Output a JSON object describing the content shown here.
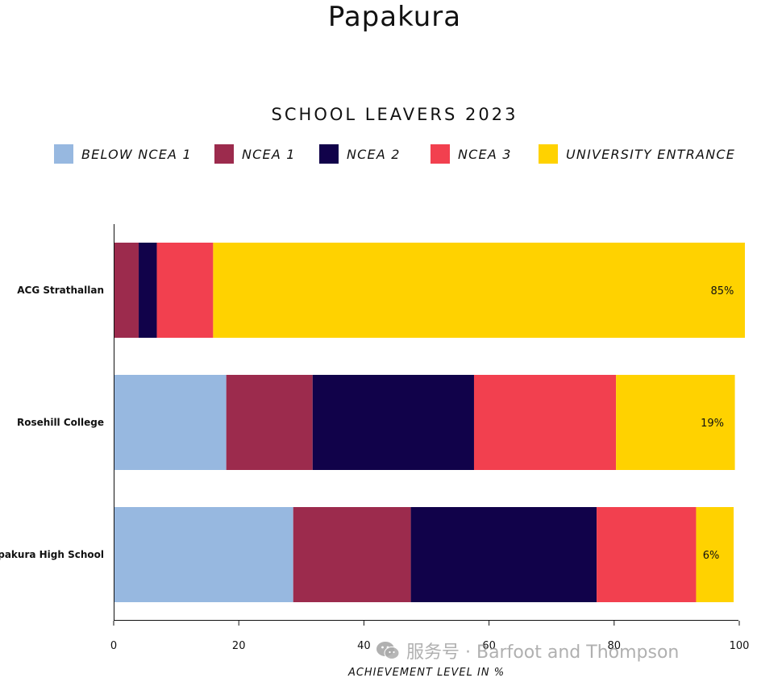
{
  "page_title": "Papakura",
  "chart_data": {
    "type": "bar",
    "orientation": "horizontal",
    "stacked": true,
    "title": "SCHOOL LEAVERS 2023",
    "xlabel": "ACHIEVEMENT LEVEL IN %",
    "ylabel": "",
    "xlim": [
      0,
      100
    ],
    "xticks": [
      0,
      20,
      40,
      60,
      80,
      100
    ],
    "grid": false,
    "legend_position": "top",
    "categories": [
      "ACG Strathallan",
      "Rosehill College",
      "Papakura High School"
    ],
    "series": [
      {
        "name": "BELOW NCEA 1",
        "color": "#97B8E0",
        "values": [
          0,
          18,
          28.7
        ]
      },
      {
        "name": "NCEA 1",
        "color": "#9C2B4D",
        "values": [
          4,
          13.8,
          18.8
        ]
      },
      {
        "name": "NCEA 2",
        "color": "#11024A",
        "values": [
          2.9,
          25.8,
          29.7
        ]
      },
      {
        "name": "NCEA 3",
        "color": "#F2404F",
        "values": [
          9,
          22.7,
          15.9
        ]
      },
      {
        "name": "UNIVERSITY ENTRANCE",
        "color": "#FFD200",
        "values": [
          85,
          19,
          6
        ]
      }
    ],
    "data_labels": {
      "series": "UNIVERSITY ENTRANCE",
      "texts": [
        "85%",
        "19%",
        "6%"
      ]
    }
  },
  "watermark": {
    "icon": "wechat-icon",
    "text": "服务号 · Barfoot and Thompson"
  }
}
